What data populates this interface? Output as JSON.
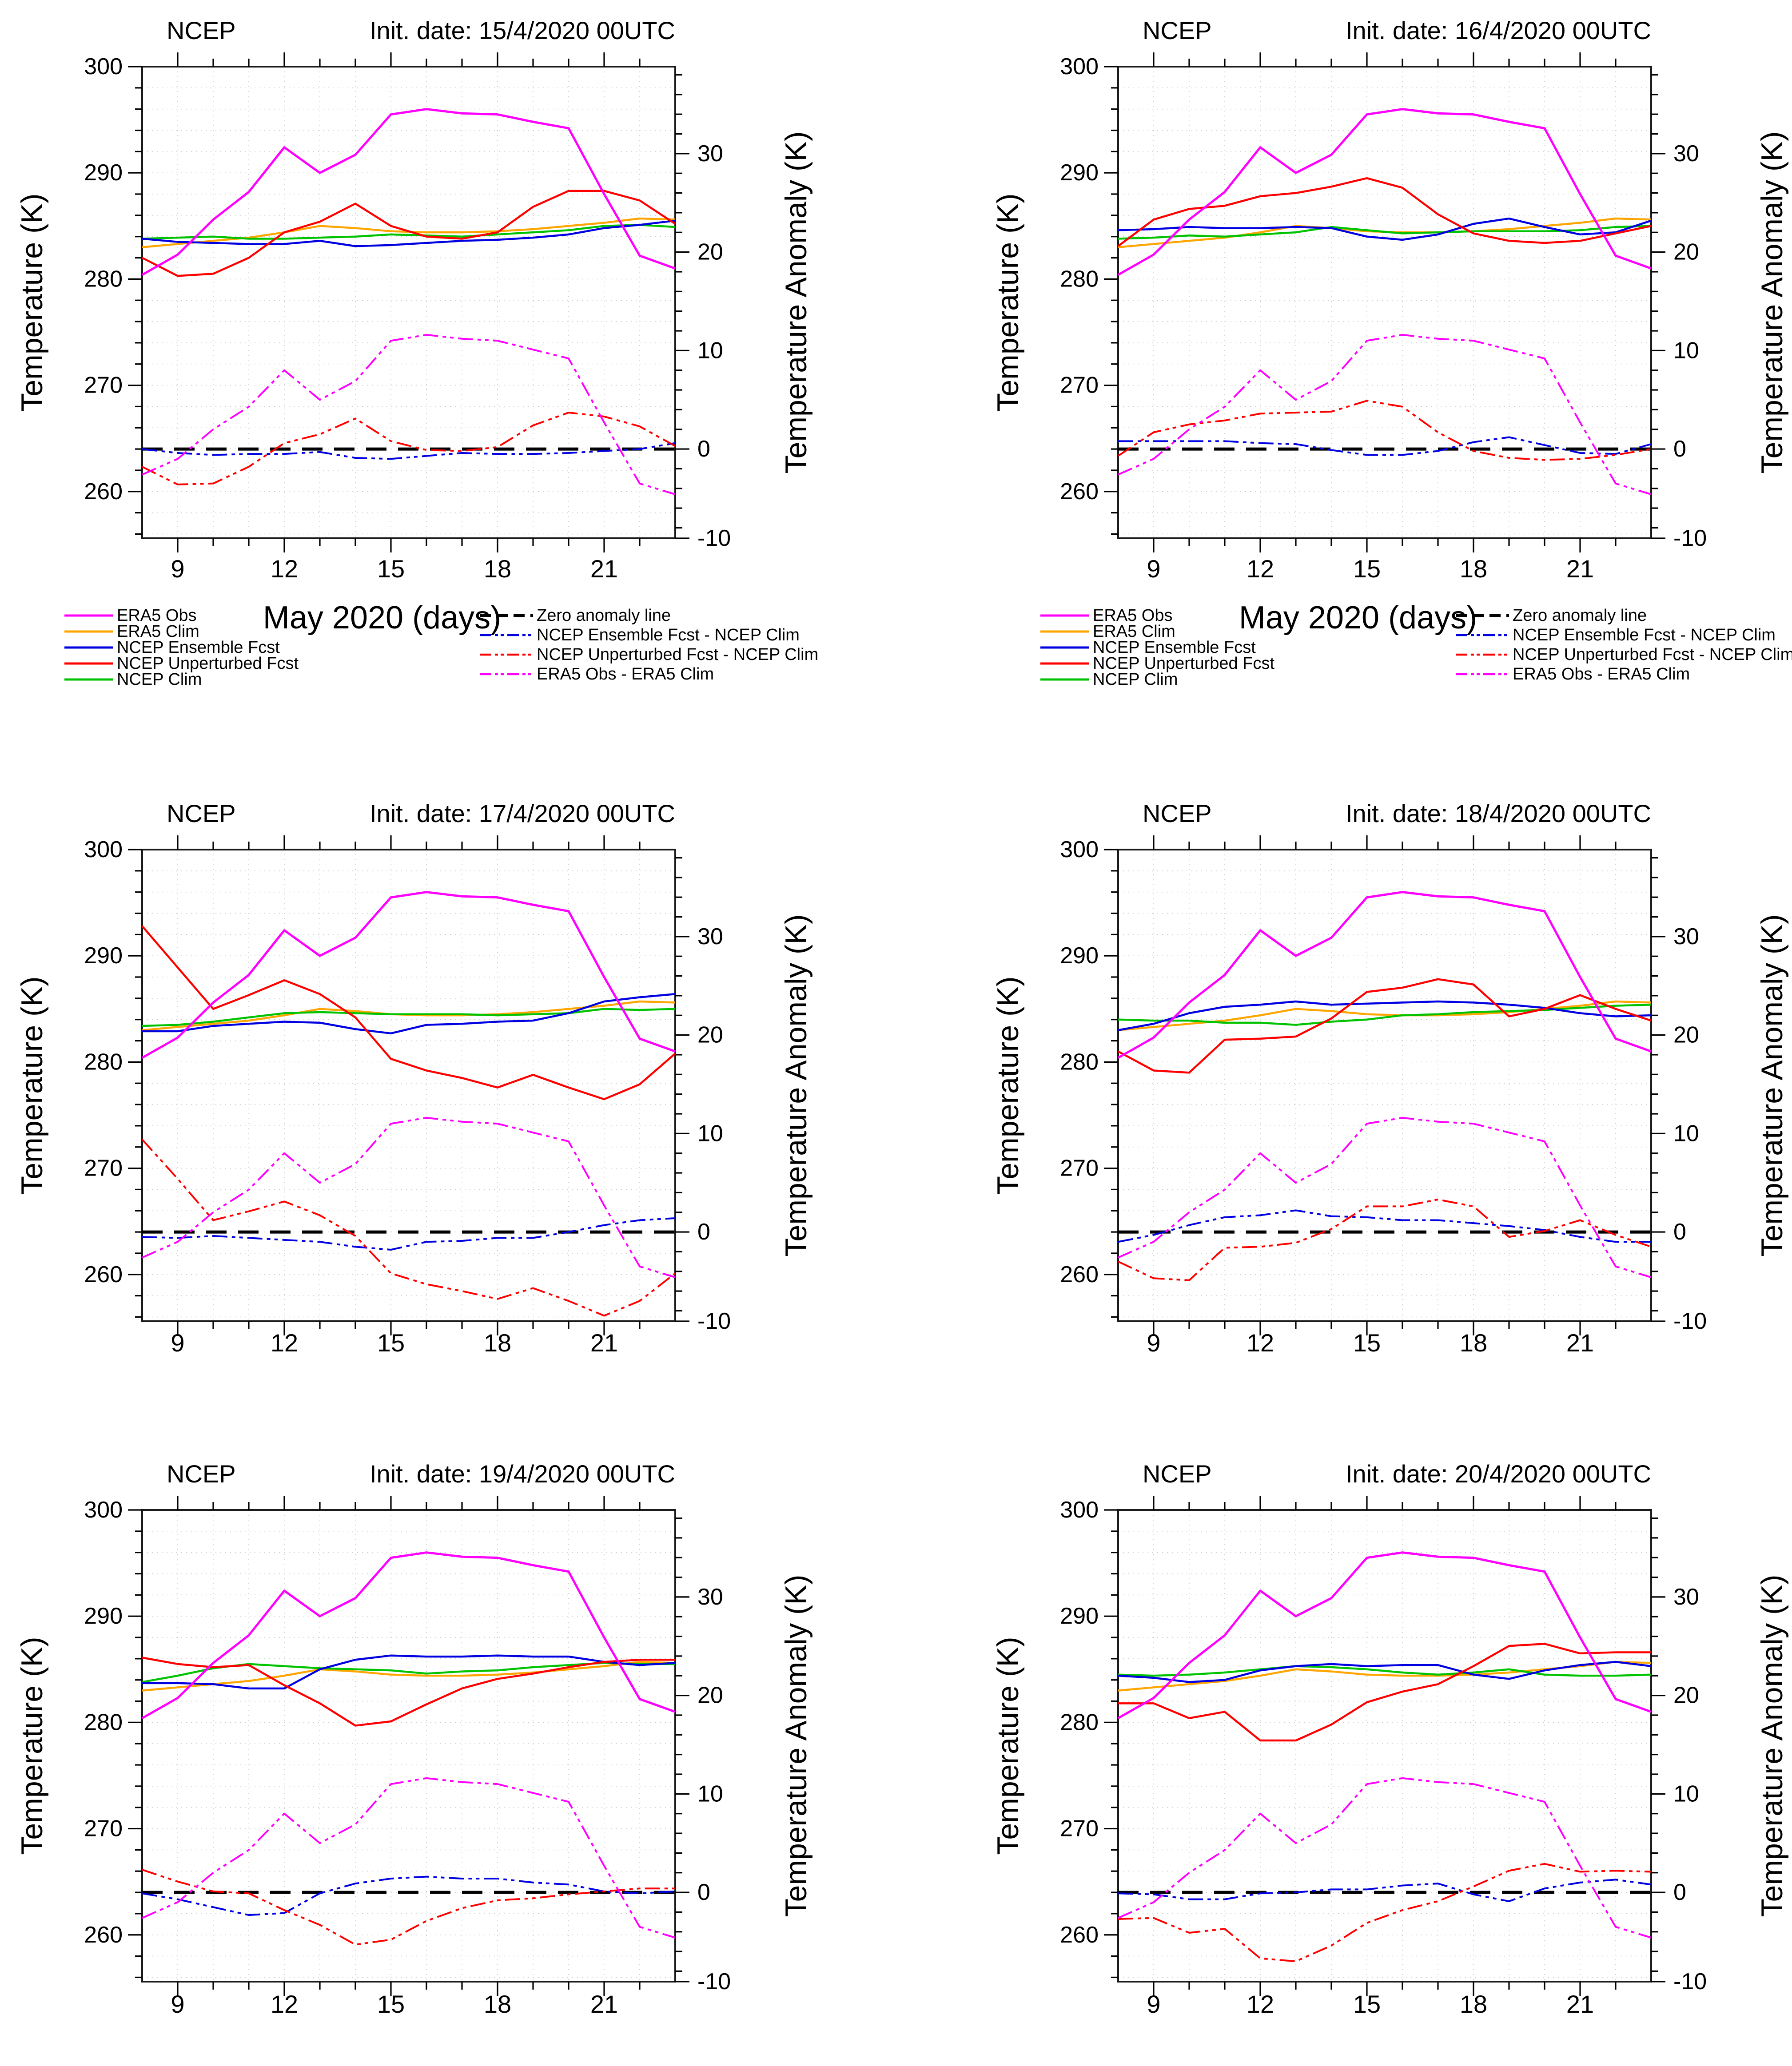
{
  "chart_data": {
    "type": "line",
    "layout": {
      "rows": 3,
      "cols": 2,
      "grid": "on",
      "legend_position": "below-top-row-panels-only"
    },
    "x": {
      "label": "May 2020 (days)",
      "days": [
        8,
        9,
        10,
        11,
        12,
        13,
        14,
        15,
        16,
        17,
        18,
        19,
        20,
        21,
        22,
        23
      ],
      "major_ticks": [
        9,
        12,
        15,
        18,
        21
      ],
      "minor_step": 1,
      "range": [
        8,
        23
      ]
    },
    "y_left": {
      "label": "Temperature (K)",
      "major_ticks": [
        300,
        290,
        280,
        270,
        260
      ],
      "minor_step": 2,
      "range": [
        255.6,
        300
      ]
    },
    "y_right": {
      "label": "Temperature Anomaly (K)",
      "major_ticks": [
        30,
        20,
        10,
        0,
        -10
      ],
      "minor_step": 2,
      "zero_anomaly_at_K": 264,
      "anomaly_unit_in_K": 0.927
    },
    "colors": {
      "magenta": "#ff00ff",
      "orange": "#ffa500",
      "blue": "#0000e0",
      "red": "#ff0000",
      "green": "#00c300",
      "black": "#000000",
      "grid": "#c9c9c9",
      "frame": "#1a1a1a"
    },
    "shared_series": {
      "era5_obs": [
        280.4,
        282.3,
        285.6,
        288.2,
        292.4,
        290.0,
        291.7,
        295.5,
        296.0,
        295.6,
        295.5,
        294.8,
        294.2,
        288.0,
        282.2,
        281.0
      ],
      "era5_clim": [
        283.0,
        283.3,
        283.6,
        283.9,
        284.4,
        285.0,
        284.8,
        284.5,
        284.4,
        284.4,
        284.5,
        284.7,
        285.0,
        285.3,
        285.7,
        285.6
      ]
    },
    "panels": [
      {
        "title": "NCEP",
        "init_date": "Init. date: 15/4/2020 00UTC",
        "show_legend": true,
        "show_xlabel": true,
        "ncep_clim": [
          283.8,
          283.9,
          284.0,
          283.8,
          283.8,
          283.9,
          284.0,
          284.2,
          284.1,
          284.0,
          284.2,
          284.4,
          284.6,
          285.0,
          285.1,
          284.9
        ],
        "ncep_ensemble_fcst": [
          283.8,
          283.5,
          283.4,
          283.3,
          283.3,
          283.6,
          283.1,
          283.2,
          283.4,
          283.6,
          283.7,
          283.9,
          284.2,
          284.8,
          285.1,
          285.5
        ],
        "ncep_unperturbed_fcst": [
          282.0,
          280.3,
          280.5,
          282.0,
          284.4,
          285.4,
          287.1,
          285.0,
          284.0,
          283.8,
          284.4,
          286.8,
          288.3,
          288.3,
          287.4,
          285.2
        ]
      },
      {
        "title": "NCEP",
        "init_date": "Init. date: 16/4/2020 00UTC",
        "show_legend": true,
        "show_xlabel": true,
        "ncep_clim": [
          283.8,
          283.9,
          284.1,
          284.0,
          284.2,
          284.4,
          284.9,
          284.6,
          284.3,
          284.4,
          284.5,
          284.5,
          284.5,
          284.6,
          284.9,
          285.0
        ],
        "ncep_ensemble_fcst": [
          284.6,
          284.7,
          284.9,
          284.8,
          284.8,
          284.9,
          284.8,
          284.0,
          283.7,
          284.2,
          285.2,
          285.7,
          284.9,
          284.2,
          284.4,
          285.5
        ],
        "ncep_unperturbed_fcst": [
          283.1,
          285.6,
          286.6,
          286.9,
          287.8,
          288.1,
          288.7,
          289.5,
          288.6,
          286.1,
          284.3,
          283.6,
          283.4,
          283.6,
          284.3,
          285.0
        ]
      },
      {
        "title": "NCEP",
        "init_date": "Init. date: 17/4/2020 00UTC",
        "show_legend": false,
        "show_xlabel": false,
        "ncep_clim": [
          283.4,
          283.5,
          283.8,
          284.2,
          284.6,
          284.7,
          284.6,
          284.5,
          284.5,
          284.5,
          284.4,
          284.5,
          284.6,
          285.0,
          284.9,
          285.0
        ],
        "ncep_ensemble_fcst": [
          282.9,
          282.9,
          283.4,
          283.6,
          283.8,
          283.7,
          283.1,
          282.7,
          283.5,
          283.6,
          283.8,
          283.9,
          284.6,
          285.7,
          286.1,
          286.4
        ],
        "ncep_unperturbed_fcst": [
          292.8,
          288.9,
          285.0,
          286.3,
          287.7,
          286.4,
          284.2,
          280.3,
          279.2,
          278.5,
          277.6,
          278.8,
          277.6,
          276.5,
          277.9,
          280.8
        ]
      },
      {
        "title": "NCEP",
        "init_date": "Init. date: 18/4/2020 00UTC",
        "show_legend": false,
        "show_xlabel": false,
        "ncep_clim": [
          284.0,
          283.9,
          283.9,
          283.7,
          283.7,
          283.5,
          283.8,
          284.0,
          284.4,
          284.5,
          284.7,
          284.8,
          284.9,
          285.1,
          285.3,
          285.4
        ],
        "ncep_ensemble_fcst": [
          283.0,
          283.6,
          284.6,
          285.2,
          285.4,
          285.7,
          285.4,
          285.5,
          285.6,
          285.7,
          285.6,
          285.4,
          285.1,
          284.6,
          284.3,
          284.4
        ],
        "ncep_unperturbed_fcst": [
          281.0,
          279.2,
          279.0,
          282.1,
          282.2,
          282.4,
          284.1,
          286.6,
          287.0,
          287.8,
          287.3,
          284.3,
          285.0,
          286.3,
          285.0,
          283.9
        ]
      },
      {
        "title": "NCEP",
        "init_date": "Init. date: 19/4/2020 00UTC",
        "show_legend": false,
        "show_xlabel": false,
        "ncep_clim": [
          283.8,
          284.4,
          285.1,
          285.5,
          285.3,
          285.1,
          285.0,
          284.9,
          284.6,
          284.8,
          284.9,
          285.2,
          285.4,
          285.6,
          285.5,
          285.5
        ],
        "ncep_ensemble_fcst": [
          283.7,
          283.7,
          283.6,
          283.2,
          283.2,
          285.0,
          285.9,
          286.3,
          286.2,
          286.2,
          286.3,
          286.2,
          286.2,
          285.7,
          285.4,
          285.6
        ],
        "ncep_unperturbed_fcst": [
          286.1,
          285.5,
          285.2,
          285.4,
          283.5,
          281.8,
          279.7,
          280.1,
          281.7,
          283.2,
          284.1,
          284.6,
          285.2,
          285.7,
          285.9,
          285.9
        ]
      },
      {
        "title": "NCEP",
        "init_date": "Init. date: 20/4/2020 00UTC",
        "show_legend": false,
        "show_xlabel": false,
        "ncep_clim": [
          284.5,
          284.4,
          284.5,
          284.7,
          285.0,
          285.3,
          285.2,
          285.0,
          284.7,
          284.5,
          284.7,
          285.0,
          284.5,
          284.4,
          284.4,
          284.5
        ],
        "ncep_ensemble_fcst": [
          284.4,
          284.2,
          283.8,
          284.0,
          284.9,
          285.3,
          285.5,
          285.3,
          285.4,
          285.4,
          284.5,
          284.1,
          284.9,
          285.4,
          285.7,
          285.3
        ],
        "ncep_unperturbed_fcst": [
          281.8,
          281.8,
          280.4,
          281.0,
          278.3,
          278.3,
          279.8,
          281.9,
          282.9,
          283.6,
          285.3,
          287.2,
          287.4,
          286.5,
          286.6,
          286.6
        ]
      }
    ],
    "solid_series_style": [
      {
        "key": "era5_clim",
        "label": "ERA5 Clim",
        "color": "orange",
        "shared": true
      },
      {
        "key": "ncep_clim",
        "label": "NCEP Clim",
        "color": "green",
        "shared": false
      },
      {
        "key": "ncep_ensemble_fcst",
        "label": "NCEP Ensemble Fcst",
        "color": "blue",
        "shared": false
      },
      {
        "key": "ncep_unperturbed_fcst",
        "label": "NCEP Unperturbed Fcst",
        "color": "red",
        "shared": false
      },
      {
        "key": "era5_obs",
        "label": "ERA5 Obs",
        "color": "magenta",
        "shared": true
      }
    ],
    "derived_series": [
      {
        "name": "Zero anomaly line",
        "formula": "anomaly = 0",
        "color": "black",
        "style": "dashed"
      },
      {
        "name": "NCEP Ensemble Fcst - NCEP Clim",
        "formula": "ncep_ensemble_fcst - ncep_clim",
        "color": "blue",
        "style": "dashdotdot"
      },
      {
        "name": "NCEP Unperturbed Fcst - NCEP Clim",
        "formula": "ncep_unperturbed_fcst - ncep_clim",
        "color": "red",
        "style": "dashdotdot"
      },
      {
        "name": "ERA5 Obs - ERA5 Clim",
        "formula": "era5_obs - era5_clim",
        "color": "magenta",
        "style": "dashdotdot"
      }
    ],
    "legend": {
      "left_column": [
        {
          "label": "ERA5 Obs",
          "color": "magenta",
          "style": "solid"
        },
        {
          "label": "ERA5 Clim",
          "color": "orange",
          "style": "solid"
        },
        {
          "label": "NCEP Ensemble Fcst",
          "color": "blue",
          "style": "solid"
        },
        {
          "label": "NCEP Unperturbed Fcst",
          "color": "red",
          "style": "solid"
        },
        {
          "label": "NCEP Clim",
          "color": "green",
          "style": "solid"
        }
      ],
      "right_column": [
        {
          "label": "Zero anomaly line",
          "color": "black",
          "style": "dashed"
        },
        {
          "label": "NCEP Ensemble Fcst - NCEP Clim",
          "color": "blue",
          "style": "dashdotdot"
        },
        {
          "label": "NCEP Unperturbed Fcst - NCEP Clim",
          "color": "red",
          "style": "dashdotdot"
        },
        {
          "label": "ERA5 Obs - ERA5 Clim",
          "color": "magenta",
          "style": "dashdotdot"
        }
      ]
    }
  }
}
